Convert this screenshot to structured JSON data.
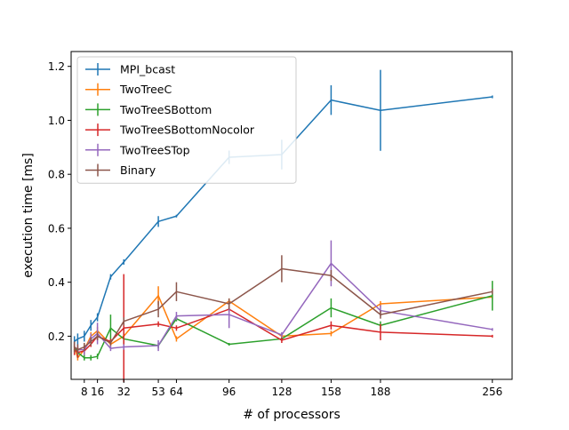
{
  "chart_data": {
    "type": "line",
    "title": "",
    "xlabel": "# of processors",
    "ylabel": "execution time [ms]",
    "xlim": [
      0,
      268
    ],
    "ylim": [
      0.04,
      1.255
    ],
    "xticks": [
      8,
      16,
      32,
      53,
      64,
      96,
      128,
      158,
      188,
      256
    ],
    "yticks": [
      0.2,
      0.4,
      0.6,
      0.8,
      1.0,
      1.2
    ],
    "ytick_labels": [
      "0.2",
      "0.4",
      "0.6",
      "0.8",
      "1.0",
      "1.2"
    ],
    "grid": false,
    "legend_position": "top-left",
    "series": [
      {
        "name": "MPI_bcast",
        "color": "#1f77b4",
        "points": [
          {
            "x": 2,
            "y": 0.18,
            "err": 0.02
          },
          {
            "x": 4,
            "y": 0.19,
            "err": 0.02
          },
          {
            "x": 8,
            "y": 0.2,
            "err": 0.02
          },
          {
            "x": 12,
            "y": 0.24,
            "err": 0.02
          },
          {
            "x": 16,
            "y": 0.27,
            "err": 0.015
          },
          {
            "x": 24,
            "y": 0.42,
            "err": 0.01
          },
          {
            "x": 32,
            "y": 0.475,
            "err": 0.01
          },
          {
            "x": 53,
            "y": 0.625,
            "err": 0.02
          },
          {
            "x": 64,
            "y": 0.645,
            "err": 0.005
          },
          {
            "x": 96,
            "y": 0.863,
            "err": 0.025
          },
          {
            "x": 128,
            "y": 0.873,
            "err": 0.055
          },
          {
            "x": 158,
            "y": 1.075,
            "err": 0.055
          },
          {
            "x": 188,
            "y": 1.037,
            "err": 0.15
          },
          {
            "x": 256,
            "y": 1.087,
            "err": 0.005
          }
        ]
      },
      {
        "name": "TwoTreeC",
        "color": "#ff7f0e",
        "points": [
          {
            "x": 2,
            "y": 0.16,
            "err": 0.02
          },
          {
            "x": 4,
            "y": 0.12,
            "err": 0.01
          },
          {
            "x": 8,
            "y": 0.15,
            "err": 0.02
          },
          {
            "x": 12,
            "y": 0.2,
            "err": 0.015
          },
          {
            "x": 16,
            "y": 0.22,
            "err": 0.015
          },
          {
            "x": 24,
            "y": 0.17,
            "err": 0.01
          },
          {
            "x": 32,
            "y": 0.2,
            "err": 0.01
          },
          {
            "x": 53,
            "y": 0.35,
            "err": 0.035
          },
          {
            "x": 64,
            "y": 0.19,
            "err": 0.01
          },
          {
            "x": 96,
            "y": 0.33,
            "err": 0.01
          },
          {
            "x": 128,
            "y": 0.2,
            "err": 0.01
          },
          {
            "x": 158,
            "y": 0.21,
            "err": 0.01
          },
          {
            "x": 188,
            "y": 0.32,
            "err": 0.01
          },
          {
            "x": 256,
            "y": 0.345,
            "err": 0.01
          }
        ]
      },
      {
        "name": "TwoTreeSBottom",
        "color": "#2ca02c",
        "points": [
          {
            "x": 2,
            "y": 0.16,
            "err": 0.02
          },
          {
            "x": 4,
            "y": 0.14,
            "err": 0.02
          },
          {
            "x": 8,
            "y": 0.12,
            "err": 0.01
          },
          {
            "x": 12,
            "y": 0.12,
            "err": 0.01
          },
          {
            "x": 16,
            "y": 0.125,
            "err": 0.01
          },
          {
            "x": 24,
            "y": 0.23,
            "err": 0.05
          },
          {
            "x": 32,
            "y": 0.19,
            "err": 0.02
          },
          {
            "x": 53,
            "y": 0.165,
            "err": 0.01
          },
          {
            "x": 64,
            "y": 0.265,
            "err": 0.01
          },
          {
            "x": 96,
            "y": 0.17,
            "err": 0.005
          },
          {
            "x": 128,
            "y": 0.19,
            "err": 0.005
          },
          {
            "x": 158,
            "y": 0.305,
            "err": 0.035
          },
          {
            "x": 188,
            "y": 0.24,
            "err": 0.015
          },
          {
            "x": 256,
            "y": 0.35,
            "err": 0.055
          }
        ]
      },
      {
        "name": "TwoTreeSBottomNocolor",
        "color": "#d62728",
        "points": [
          {
            "x": 2,
            "y": 0.15,
            "err": 0.02
          },
          {
            "x": 4,
            "y": 0.14,
            "err": 0.02
          },
          {
            "x": 8,
            "y": 0.145,
            "err": 0.01
          },
          {
            "x": 12,
            "y": 0.17,
            "err": 0.01
          },
          {
            "x": 16,
            "y": 0.2,
            "err": 0.015
          },
          {
            "x": 24,
            "y": 0.18,
            "err": 0.01
          },
          {
            "x": 32,
            "y": 0.23,
            "err": 0.2
          },
          {
            "x": 53,
            "y": 0.245,
            "err": 0.01
          },
          {
            "x": 64,
            "y": 0.23,
            "err": 0.01
          },
          {
            "x": 96,
            "y": 0.3,
            "err": 0.01
          },
          {
            "x": 128,
            "y": 0.185,
            "err": 0.01
          },
          {
            "x": 158,
            "y": 0.24,
            "err": 0.015
          },
          {
            "x": 188,
            "y": 0.215,
            "err": 0.03
          },
          {
            "x": 256,
            "y": 0.2,
            "err": 0.005
          }
        ]
      },
      {
        "name": "TwoTreeSTop",
        "color": "#9467bd",
        "points": [
          {
            "x": 2,
            "y": 0.16,
            "err": 0.02
          },
          {
            "x": 4,
            "y": 0.15,
            "err": 0.02
          },
          {
            "x": 8,
            "y": 0.15,
            "err": 0.02
          },
          {
            "x": 12,
            "y": 0.19,
            "err": 0.02
          },
          {
            "x": 16,
            "y": 0.21,
            "err": 0.04
          },
          {
            "x": 24,
            "y": 0.155,
            "err": 0.01
          },
          {
            "x": 32,
            "y": 0.16,
            "err": 0.01
          },
          {
            "x": 53,
            "y": 0.165,
            "err": 0.02
          },
          {
            "x": 64,
            "y": 0.275,
            "err": 0.015
          },
          {
            "x": 96,
            "y": 0.28,
            "err": 0.05
          },
          {
            "x": 128,
            "y": 0.205,
            "err": 0.01
          },
          {
            "x": 158,
            "y": 0.47,
            "err": 0.085
          },
          {
            "x": 188,
            "y": 0.295,
            "err": 0.02
          },
          {
            "x": 256,
            "y": 0.225,
            "err": 0.005
          }
        ]
      },
      {
        "name": "Binary",
        "color": "#8c564b",
        "points": [
          {
            "x": 2,
            "y": 0.16,
            "err": 0.02
          },
          {
            "x": 4,
            "y": 0.15,
            "err": 0.02
          },
          {
            "x": 8,
            "y": 0.16,
            "err": 0.015
          },
          {
            "x": 12,
            "y": 0.18,
            "err": 0.015
          },
          {
            "x": 16,
            "y": 0.2,
            "err": 0.015
          },
          {
            "x": 24,
            "y": 0.175,
            "err": 0.01
          },
          {
            "x": 32,
            "y": 0.255,
            "err": 0.015
          },
          {
            "x": 53,
            "y": 0.3,
            "err": 0.03
          },
          {
            "x": 64,
            "y": 0.365,
            "err": 0.035
          },
          {
            "x": 96,
            "y": 0.32,
            "err": 0.02
          },
          {
            "x": 128,
            "y": 0.45,
            "err": 0.05
          },
          {
            "x": 158,
            "y": 0.425,
            "err": 0.02
          },
          {
            "x": 188,
            "y": 0.28,
            "err": 0.015
          },
          {
            "x": 256,
            "y": 0.365,
            "err": 0.01
          }
        ]
      }
    ]
  }
}
